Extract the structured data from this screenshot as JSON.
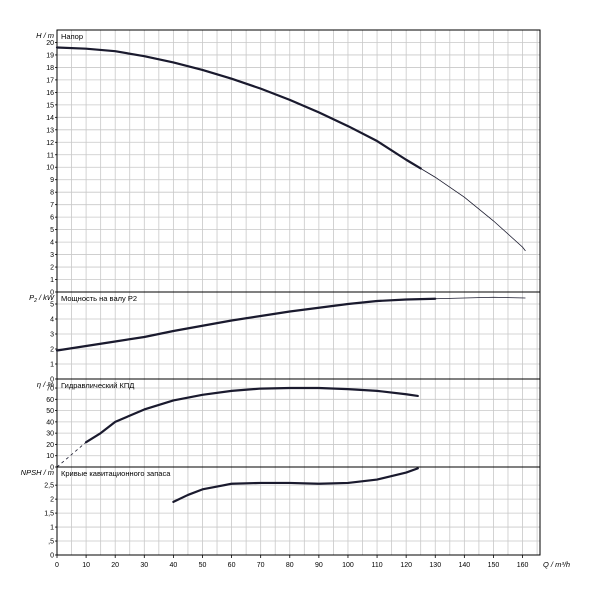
{
  "chart_data": {
    "type": "line",
    "x": {
      "label": "Q / m³/h",
      "range": [
        0,
        166
      ],
      "ticks": [
        0,
        10,
        20,
        30,
        40,
        50,
        60,
        70,
        80,
        90,
        100,
        110,
        120,
        130,
        140,
        150,
        160
      ],
      "grid_step": 5
    },
    "panels": [
      {
        "id": "head",
        "title": "Напор",
        "ylabel": "H / m",
        "ylim": [
          0,
          21
        ],
        "yticks": [
          0,
          1,
          2,
          3,
          4,
          5,
          6,
          7,
          8,
          9,
          10,
          11,
          12,
          13,
          14,
          15,
          16,
          17,
          18,
          19,
          20
        ],
        "series": [
          {
            "style": "thick",
            "points": [
              [
                0,
                19.6
              ],
              [
                10,
                19.5
              ],
              [
                20,
                19.3
              ],
              [
                30,
                18.9
              ],
              [
                40,
                18.4
              ],
              [
                50,
                17.8
              ],
              [
                60,
                17.1
              ],
              [
                70,
                16.3
              ],
              [
                80,
                15.4
              ],
              [
                90,
                14.4
              ],
              [
                100,
                13.3
              ],
              [
                110,
                12.1
              ],
              [
                120,
                10.6
              ],
              [
                125,
                9.9
              ]
            ]
          },
          {
            "style": "thin",
            "points": [
              [
                125,
                9.9
              ],
              [
                130,
                9.2
              ],
              [
                140,
                7.6
              ],
              [
                150,
                5.7
              ],
              [
                160,
                3.6
              ],
              [
                161,
                3.3
              ]
            ]
          }
        ]
      },
      {
        "id": "power",
        "title": "Мощность на валу P2",
        "ylabel_parts": [
          "P",
          "2",
          " / kW"
        ],
        "ylim": [
          0,
          5.8
        ],
        "yticks": [
          0,
          1,
          2,
          3,
          4,
          5
        ],
        "series": [
          {
            "style": "thick",
            "points": [
              [
                0,
                1.9
              ],
              [
                10,
                2.2
              ],
              [
                20,
                2.5
              ],
              [
                30,
                2.8
              ],
              [
                40,
                3.2
              ],
              [
                50,
                3.55
              ],
              [
                60,
                3.9
              ],
              [
                70,
                4.2
              ],
              [
                80,
                4.5
              ],
              [
                90,
                4.75
              ],
              [
                100,
                5.0
              ],
              [
                110,
                5.2
              ],
              [
                120,
                5.3
              ],
              [
                130,
                5.35
              ]
            ]
          },
          {
            "style": "thin",
            "points": [
              [
                130,
                5.35
              ],
              [
                140,
                5.4
              ],
              [
                150,
                5.45
              ],
              [
                161,
                5.4
              ]
            ]
          }
        ]
      },
      {
        "id": "efficiency",
        "title": "Гидравлический КПД",
        "ylabel": "η / %",
        "ylim": [
          0,
          78
        ],
        "yticks": [
          0,
          10,
          20,
          30,
          40,
          50,
          60,
          70
        ],
        "series": [
          {
            "style": "dash",
            "points": [
              [
                0,
                0
              ],
              [
                5,
                11
              ],
              [
                10,
                22
              ]
            ]
          },
          {
            "style": "thick",
            "points": [
              [
                10,
                22
              ],
              [
                15,
                30
              ],
              [
                20,
                40
              ],
              [
                30,
                51
              ],
              [
                40,
                59
              ],
              [
                50,
                64
              ],
              [
                60,
                67.5
              ],
              [
                70,
                69.5
              ],
              [
                80,
                70
              ],
              [
                90,
                70
              ],
              [
                100,
                69
              ],
              [
                110,
                67.5
              ],
              [
                120,
                64.5
              ],
              [
                124,
                63
              ]
            ]
          }
        ]
      },
      {
        "id": "npsh",
        "title": "Кривые кавитационного запаса",
        "ylabel": "NPSH / m",
        "ylim": [
          0,
          3.15
        ],
        "yticks": [
          0,
          0.5,
          1,
          1.5,
          2,
          2.5
        ],
        "ytick_labels": [
          "0",
          ",5",
          "1",
          "1,5",
          "2",
          "2,5"
        ],
        "series": [
          {
            "style": "thick",
            "points": [
              [
                40,
                1.9
              ],
              [
                45,
                2.15
              ],
              [
                50,
                2.35
              ],
              [
                55,
                2.45
              ],
              [
                60,
                2.55
              ],
              [
                70,
                2.58
              ],
              [
                80,
                2.58
              ],
              [
                90,
                2.55
              ],
              [
                100,
                2.58
              ],
              [
                110,
                2.7
              ],
              [
                120,
                2.95
              ],
              [
                124,
                3.1
              ]
            ]
          }
        ]
      }
    ]
  }
}
